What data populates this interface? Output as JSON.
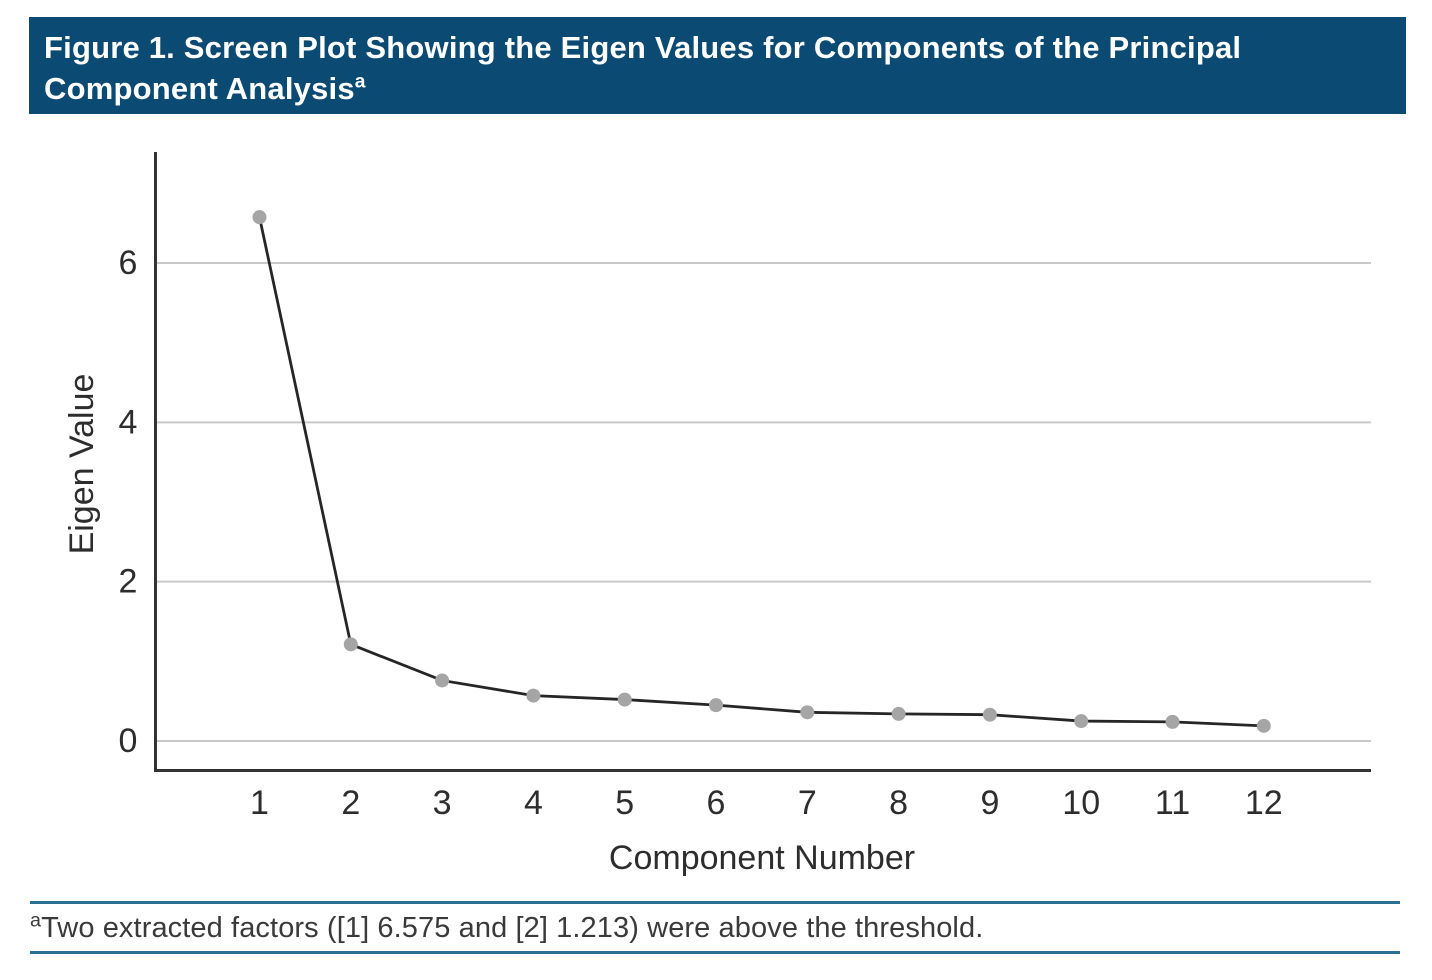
{
  "header": {
    "title_line1": "Figure 1. Screen Plot Showing the Eigen Values for Components of the Principal",
    "title_line2": "Component Analysis",
    "footnote_marker": "a",
    "background": "#0b4a72",
    "text_color": "#ffffff"
  },
  "chart_data": {
    "type": "line",
    "title": "",
    "xlabel": "Component Number",
    "ylabel": "Eigen Value",
    "x": [
      1,
      2,
      3,
      4,
      5,
      6,
      7,
      8,
      9,
      10,
      11,
      12
    ],
    "values": [
      6.575,
      1.213,
      0.76,
      0.57,
      0.52,
      0.45,
      0.36,
      0.34,
      0.33,
      0.25,
      0.24,
      0.19
    ],
    "yticks": [
      0,
      2,
      4,
      6
    ],
    "ylim": [
      -0.39,
      7.4
    ],
    "grid": true,
    "legend": "none",
    "marker": "circle",
    "marker_color": "#a5a5a5",
    "line_color": "#262626",
    "axis_color": "#333333",
    "grid_color": "#c9c9c9",
    "tick_color": "#2d2d2d"
  },
  "footnote": {
    "marker": "a",
    "text": "Two extracted factors ([1] 6.575 and [2] 1.213) were above the threshold.",
    "rule_color": "#2b6f94"
  }
}
